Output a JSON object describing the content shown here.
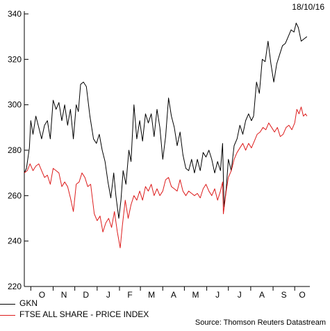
{
  "date_stamp": "18/10/16",
  "source": "Source: Thomson Reuters Datastream",
  "chart_data": {
    "type": "line",
    "title": "",
    "xlabel": "",
    "ylabel": "",
    "ylim": [
      220,
      340
    ],
    "yticks": [
      220,
      240,
      260,
      280,
      300,
      320,
      340
    ],
    "xlim": [
      "2015-10-01",
      "2016-10-18"
    ],
    "month_ticks": [
      {
        "label": "O",
        "date": "2015-10-01"
      },
      {
        "label": "N",
        "date": "2015-11-01"
      },
      {
        "label": "D",
        "date": "2015-12-01"
      },
      {
        "label": "J",
        "date": "2016-01-01"
      },
      {
        "label": "F",
        "date": "2016-02-01"
      },
      {
        "label": "M",
        "date": "2016-03-01"
      },
      {
        "label": "A",
        "date": "2016-04-01"
      },
      {
        "label": "M",
        "date": "2016-05-01"
      },
      {
        "label": "J",
        "date": "2016-06-01"
      },
      {
        "label": "J",
        "date": "2016-07-01"
      },
      {
        "label": "A",
        "date": "2016-08-01"
      },
      {
        "label": "S",
        "date": "2016-09-01"
      },
      {
        "label": "O",
        "date": "2016-10-01"
      }
    ],
    "grid": false,
    "legend": "bottom-left",
    "series": [
      {
        "name": "GKN",
        "color": "#000000",
        "points": [
          [
            "2015-09-22",
            270
          ],
          [
            "2015-09-25",
            272
          ],
          [
            "2015-09-29",
            281
          ],
          [
            "2015-10-01",
            293
          ],
          [
            "2015-10-04",
            287
          ],
          [
            "2015-10-08",
            295
          ],
          [
            "2015-10-12",
            290
          ],
          [
            "2015-10-16",
            285
          ],
          [
            "2015-10-20",
            291
          ],
          [
            "2015-10-24",
            293
          ],
          [
            "2015-10-28",
            285
          ],
          [
            "2015-11-01",
            302
          ],
          [
            "2015-11-05",
            298
          ],
          [
            "2015-11-09",
            301
          ],
          [
            "2015-11-13",
            293
          ],
          [
            "2015-11-17",
            300
          ],
          [
            "2015-11-21",
            291
          ],
          [
            "2015-11-25",
            298
          ],
          [
            "2015-11-29",
            285
          ],
          [
            "2015-12-03",
            300
          ],
          [
            "2015-12-06",
            297
          ],
          [
            "2015-12-09",
            309
          ],
          [
            "2015-12-13",
            310
          ],
          [
            "2015-12-17",
            308
          ],
          [
            "2015-12-22",
            295
          ],
          [
            "2015-12-27",
            285
          ],
          [
            "2015-12-31",
            283
          ],
          [
            "2016-01-04",
            287
          ],
          [
            "2016-01-08",
            280
          ],
          [
            "2016-01-12",
            275
          ],
          [
            "2016-01-16",
            266
          ],
          [
            "2016-01-20",
            259
          ],
          [
            "2016-01-24",
            270
          ],
          [
            "2016-01-27",
            260
          ],
          [
            "2016-01-31",
            250
          ],
          [
            "2016-02-03",
            258
          ],
          [
            "2016-02-06",
            271
          ],
          [
            "2016-02-10",
            265
          ],
          [
            "2016-02-14",
            280
          ],
          [
            "2016-02-17",
            275
          ],
          [
            "2016-02-21",
            300
          ],
          [
            "2016-02-25",
            285
          ],
          [
            "2016-02-29",
            293
          ],
          [
            "2016-03-04",
            284
          ],
          [
            "2016-03-08",
            296
          ],
          [
            "2016-03-12",
            292
          ],
          [
            "2016-03-16",
            296
          ],
          [
            "2016-03-20",
            286
          ],
          [
            "2016-03-24",
            298
          ],
          [
            "2016-03-28",
            290
          ],
          [
            "2016-04-01",
            276
          ],
          [
            "2016-04-05",
            286
          ],
          [
            "2016-04-09",
            303
          ],
          [
            "2016-04-13",
            295
          ],
          [
            "2016-04-17",
            290
          ],
          [
            "2016-04-21",
            282
          ],
          [
            "2016-04-25",
            288
          ],
          [
            "2016-04-29",
            278
          ],
          [
            "2016-05-03",
            272
          ],
          [
            "2016-05-07",
            271
          ],
          [
            "2016-05-11",
            276
          ],
          [
            "2016-05-15",
            270
          ],
          [
            "2016-05-19",
            276
          ],
          [
            "2016-05-23",
            271
          ],
          [
            "2016-05-27",
            279
          ],
          [
            "2016-05-31",
            277
          ],
          [
            "2016-06-04",
            280
          ],
          [
            "2016-06-08",
            276
          ],
          [
            "2016-06-12",
            270
          ],
          [
            "2016-06-16",
            275
          ],
          [
            "2016-06-20",
            271
          ],
          [
            "2016-06-23",
            283
          ],
          [
            "2016-06-25",
            255
          ],
          [
            "2016-06-28",
            263
          ],
          [
            "2016-07-01",
            276
          ],
          [
            "2016-07-05",
            271
          ],
          [
            "2016-07-09",
            282
          ],
          [
            "2016-07-13",
            285
          ],
          [
            "2016-07-17",
            291
          ],
          [
            "2016-07-21",
            287
          ],
          [
            "2016-07-25",
            293
          ],
          [
            "2016-07-29",
            296
          ],
          [
            "2016-08-02",
            293
          ],
          [
            "2016-08-05",
            295
          ],
          [
            "2016-08-09",
            310
          ],
          [
            "2016-08-13",
            305
          ],
          [
            "2016-08-17",
            320
          ],
          [
            "2016-08-21",
            319
          ],
          [
            "2016-08-25",
            328
          ],
          [
            "2016-08-29",
            318
          ],
          [
            "2016-09-02",
            310
          ],
          [
            "2016-09-06",
            318
          ],
          [
            "2016-09-10",
            322
          ],
          [
            "2016-09-14",
            326
          ],
          [
            "2016-09-18",
            327
          ],
          [
            "2016-09-22",
            330
          ],
          [
            "2016-09-26",
            333
          ],
          [
            "2016-09-30",
            332
          ],
          [
            "2016-10-03",
            336
          ],
          [
            "2016-10-06",
            334
          ],
          [
            "2016-10-10",
            328
          ],
          [
            "2016-10-14",
            329
          ],
          [
            "2016-10-18",
            330
          ]
        ]
      },
      {
        "name": "FTSE ALL SHARE - PRICE INDEX",
        "color": "#dd1c1c",
        "points": [
          [
            "2015-09-22",
            270
          ],
          [
            "2015-09-26",
            271
          ],
          [
            "2015-09-30",
            274
          ],
          [
            "2015-10-04",
            271
          ],
          [
            "2015-10-08",
            273
          ],
          [
            "2015-10-12",
            274
          ],
          [
            "2015-10-16",
            271
          ],
          [
            "2015-10-20",
            268
          ],
          [
            "2015-10-24",
            269
          ],
          [
            "2015-10-28",
            265
          ],
          [
            "2015-11-01",
            272
          ],
          [
            "2015-11-05",
            271
          ],
          [
            "2015-11-09",
            270
          ],
          [
            "2015-11-13",
            264
          ],
          [
            "2015-11-17",
            266
          ],
          [
            "2015-11-21",
            264
          ],
          [
            "2015-11-25",
            259
          ],
          [
            "2015-11-29",
            253
          ],
          [
            "2015-12-03",
            265
          ],
          [
            "2015-12-07",
            266
          ],
          [
            "2015-12-11",
            270
          ],
          [
            "2015-12-15",
            268
          ],
          [
            "2015-12-19",
            264
          ],
          [
            "2015-12-23",
            265
          ],
          [
            "2015-12-28",
            252
          ],
          [
            "2016-01-01",
            249
          ],
          [
            "2016-01-05",
            251
          ],
          [
            "2016-01-09",
            244
          ],
          [
            "2016-01-13",
            248
          ],
          [
            "2016-01-17",
            250
          ],
          [
            "2016-01-21",
            246
          ],
          [
            "2016-01-25",
            253
          ],
          [
            "2016-01-29",
            244
          ],
          [
            "2016-02-02",
            237
          ],
          [
            "2016-02-05",
            247
          ],
          [
            "2016-02-09",
            258
          ],
          [
            "2016-02-13",
            250
          ],
          [
            "2016-02-17",
            256
          ],
          [
            "2016-02-21",
            260
          ],
          [
            "2016-02-25",
            258
          ],
          [
            "2016-02-29",
            262
          ],
          [
            "2016-03-04",
            258
          ],
          [
            "2016-03-08",
            264
          ],
          [
            "2016-03-12",
            262
          ],
          [
            "2016-03-16",
            265
          ],
          [
            "2016-03-20",
            260
          ],
          [
            "2016-03-24",
            263
          ],
          [
            "2016-03-28",
            260
          ],
          [
            "2016-04-01",
            262
          ],
          [
            "2016-04-05",
            267
          ],
          [
            "2016-04-09",
            268
          ],
          [
            "2016-04-13",
            264
          ],
          [
            "2016-04-17",
            263
          ],
          [
            "2016-04-21",
            262
          ],
          [
            "2016-04-25",
            267
          ],
          [
            "2016-04-29",
            262
          ],
          [
            "2016-05-03",
            260
          ],
          [
            "2016-05-07",
            262
          ],
          [
            "2016-05-11",
            261
          ],
          [
            "2016-05-15",
            260
          ],
          [
            "2016-05-19",
            261
          ],
          [
            "2016-05-23",
            259
          ],
          [
            "2016-05-27",
            263
          ],
          [
            "2016-05-31",
            265
          ],
          [
            "2016-06-04",
            262
          ],
          [
            "2016-06-08",
            260
          ],
          [
            "2016-06-12",
            263
          ],
          [
            "2016-06-16",
            258
          ],
          [
            "2016-06-20",
            262
          ],
          [
            "2016-06-23",
            266
          ],
          [
            "2016-06-24",
            252
          ],
          [
            "2016-06-28",
            262
          ],
          [
            "2016-07-01",
            268
          ],
          [
            "2016-07-05",
            271
          ],
          [
            "2016-07-09",
            276
          ],
          [
            "2016-07-13",
            279
          ],
          [
            "2016-07-17",
            281
          ],
          [
            "2016-07-21",
            283
          ],
          [
            "2016-07-25",
            280
          ],
          [
            "2016-07-29",
            283
          ],
          [
            "2016-08-02",
            281
          ],
          [
            "2016-08-06",
            284
          ],
          [
            "2016-08-10",
            287
          ],
          [
            "2016-08-14",
            288
          ],
          [
            "2016-08-18",
            290
          ],
          [
            "2016-08-22",
            289
          ],
          [
            "2016-08-26",
            292
          ],
          [
            "2016-08-30",
            290
          ],
          [
            "2016-09-03",
            288
          ],
          [
            "2016-09-07",
            290
          ],
          [
            "2016-09-11",
            286
          ],
          [
            "2016-09-15",
            287
          ],
          [
            "2016-09-19",
            290
          ],
          [
            "2016-09-23",
            291
          ],
          [
            "2016-09-27",
            289
          ],
          [
            "2016-10-01",
            292
          ],
          [
            "2016-10-04",
            298
          ],
          [
            "2016-10-07",
            296
          ],
          [
            "2016-10-10",
            299
          ],
          [
            "2016-10-13",
            295
          ],
          [
            "2016-10-16",
            296
          ],
          [
            "2016-10-18",
            295
          ]
        ]
      }
    ]
  }
}
